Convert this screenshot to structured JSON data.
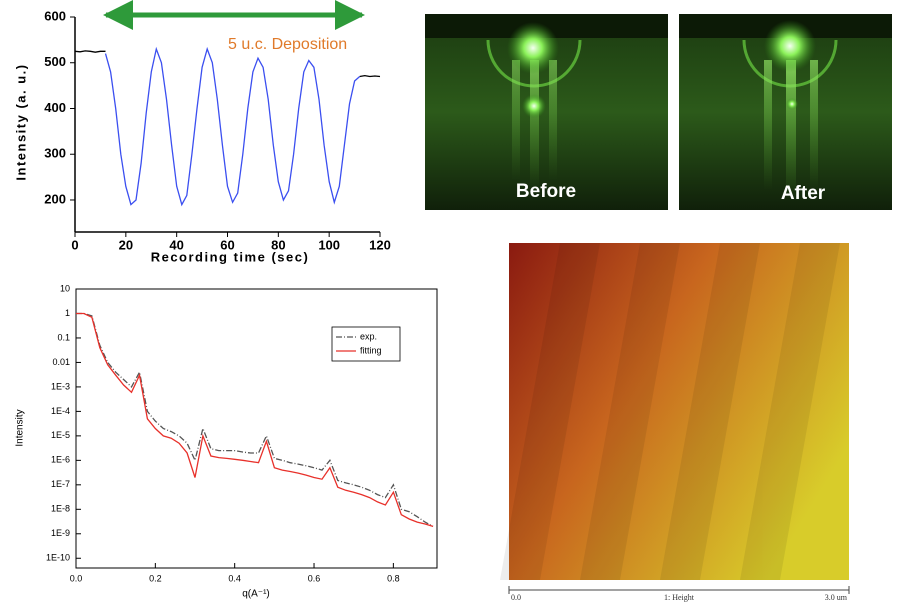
{
  "chart_data": [
    {
      "type": "line",
      "x_label": "Recording time (sec)",
      "y_label": "Intensity (a. u.)",
      "annotation": "5 u.c. Deposition",
      "x": [
        0,
        2,
        4,
        6,
        8,
        10,
        12,
        14,
        16,
        18,
        20,
        22,
        24,
        26,
        28,
        30,
        32,
        34,
        36,
        38,
        40,
        42,
        44,
        46,
        48,
        50,
        52,
        54,
        56,
        58,
        60,
        62,
        64,
        66,
        68,
        70,
        72,
        74,
        76,
        78,
        80,
        82,
        84,
        86,
        88,
        90,
        92,
        94,
        96,
        98,
        100,
        102,
        104,
        106,
        108,
        110,
        112,
        114,
        116,
        118,
        120
      ],
      "series": [
        {
          "color": "#000000",
          "values": [
            525,
            524,
            526,
            525,
            523,
            525,
            525,
            null,
            null,
            null,
            null,
            null,
            null,
            null,
            null,
            null,
            null,
            null,
            null,
            null,
            null,
            null,
            null,
            null,
            null,
            null,
            null,
            null,
            null,
            null,
            null,
            null,
            null,
            null,
            null,
            null,
            null,
            null,
            null,
            null,
            null,
            null,
            null,
            null,
            null,
            null,
            null,
            null,
            null,
            null,
            null,
            null,
            null,
            null,
            null,
            null,
            470,
            472,
            470,
            471,
            470
          ]
        },
        {
          "color": "#3b4ff0",
          "values": [
            null,
            null,
            null,
            null,
            null,
            null,
            520,
            480,
            400,
            300,
            230,
            190,
            200,
            280,
            390,
            480,
            530,
            500,
            420,
            320,
            230,
            190,
            210,
            300,
            400,
            490,
            530,
            500,
            420,
            320,
            230,
            195,
            215,
            300,
            400,
            480,
            510,
            490,
            420,
            320,
            240,
            200,
            220,
            300,
            400,
            480,
            505,
            490,
            420,
            320,
            240,
            195,
            230,
            320,
            410,
            460,
            470,
            null,
            null,
            null,
            null
          ]
        }
      ],
      "xlim": [
        0,
        120
      ],
      "xticks": [
        0,
        20,
        40,
        60,
        80,
        100,
        120
      ],
      "ylim": [
        130,
        600
      ],
      "yticks": [
        200,
        300,
        400,
        500,
        600
      ]
    },
    {
      "type": "line",
      "x_label": "q(A⁻¹)",
      "y_label": "Intensity",
      "log_y": true,
      "legend": "upper right",
      "x": [
        0,
        0.02,
        0.04,
        0.06,
        0.08,
        0.1,
        0.12,
        0.14,
        0.16,
        0.18,
        0.2,
        0.22,
        0.24,
        0.26,
        0.28,
        0.3,
        0.32,
        0.34,
        0.36,
        0.38,
        0.4,
        0.42,
        0.44,
        0.46,
        0.48,
        0.5,
        0.52,
        0.54,
        0.56,
        0.58,
        0.6,
        0.62,
        0.64,
        0.66,
        0.68,
        0.7,
        0.72,
        0.74,
        0.76,
        0.78,
        0.8,
        0.82,
        0.84,
        0.86,
        0.88,
        0.9
      ],
      "series": [
        {
          "name": "exp.",
          "color": "#555555",
          "line_style": "dashdot",
          "values": [
            1,
            1,
            0.8,
            0.05,
            0.01,
            0.004,
            0.002,
            0.001,
            0.004,
            0.0001,
            4e-05,
            2e-05,
            1.5e-05,
            1e-05,
            5e-06,
            1e-06,
            2e-05,
            3e-06,
            2.5e-06,
            2.5e-06,
            2.5e-06,
            2.2e-06,
            2e-06,
            2e-06,
            1e-05,
            1.2e-06,
            1e-06,
            8e-07,
            7e-07,
            6e-07,
            5e-07,
            4e-07,
            1e-06,
            1.5e-07,
            1.2e-07,
            1e-07,
            8e-08,
            6e-08,
            4e-08,
            3e-08,
            1e-07,
            1e-08,
            8e-09,
            5e-09,
            3e-09,
            2e-09
          ]
        },
        {
          "name": "fitting",
          "color": "#e8302a",
          "line_style": "solid",
          "values": [
            1,
            1,
            0.7,
            0.04,
            0.008,
            0.003,
            0.0012,
            0.0006,
            0.003,
            5e-05,
            2e-05,
            1e-05,
            8e-06,
            5e-06,
            2e-06,
            2e-07,
            1e-05,
            1.5e-06,
            1.3e-06,
            1.2e-06,
            1.1e-06,
            1e-06,
            9e-07,
            8e-07,
            6e-06,
            5e-07,
            4e-07,
            3.5e-07,
            3e-07,
            2.5e-07,
            2e-07,
            1.7e-07,
            5e-07,
            8e-08,
            6e-08,
            5e-08,
            4e-08,
            3e-08,
            2e-08,
            1.5e-08,
            5e-08,
            6e-09,
            4e-09,
            3e-09,
            2.5e-09,
            2e-09
          ]
        }
      ],
      "xlim": [
        0,
        0.91
      ],
      "xticks": [
        {
          "value": 0,
          "label": "0.0"
        },
        0.2,
        0.4,
        0.6,
        0.8
      ],
      "ylim": [
        4e-11,
        10
      ],
      "yticks": [
        {
          "value": 1e-10,
          "label": "1E-10"
        },
        {
          "value": 1e-09,
          "label": "1E-9"
        },
        {
          "value": 1e-08,
          "label": "1E-8"
        },
        {
          "value": 1e-07,
          "label": "1E-7"
        },
        {
          "value": 1e-06,
          "label": "1E-6"
        },
        {
          "value": 1e-05,
          "label": "1E-5"
        },
        {
          "value": 0.0001,
          "label": "1E-4"
        },
        {
          "value": 0.001,
          "label": "1E-3"
        },
        0.01,
        0.1,
        1,
        10
      ]
    }
  ],
  "rheed_images": {
    "labels": [
      "Before",
      "After"
    ]
  },
  "afm_image": {
    "scale_labels": [
      "0.0",
      "1: Height",
      "3.0 um"
    ]
  }
}
